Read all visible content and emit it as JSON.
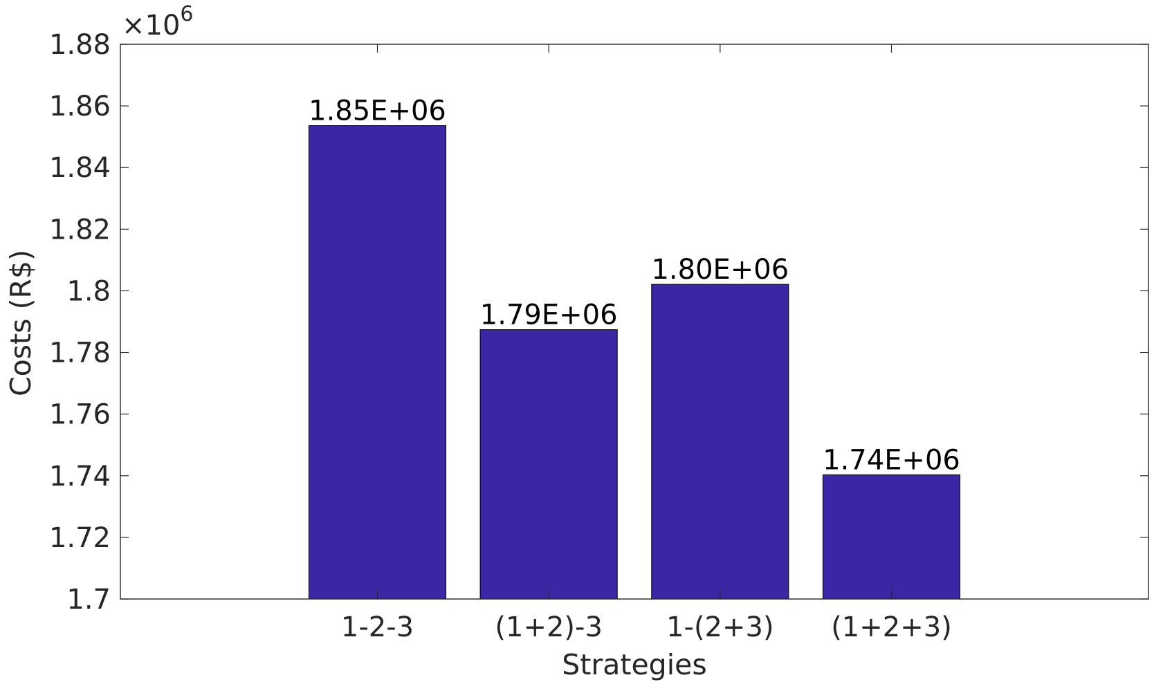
{
  "chart_data": {
    "type": "bar",
    "categories": [
      "1-2-3",
      "(1+2)-3",
      "1-(2+3)",
      "(1+2+3)"
    ],
    "values": [
      1853600,
      1787400,
      1802100,
      1740300
    ],
    "data_labels": [
      "1.85E+06",
      "1.79E+06",
      "1.80E+06",
      "1.74E+06"
    ],
    "title": "",
    "xlabel": "Strategies",
    "ylabel": "Costs (R$)",
    "ylim": [
      1700000,
      1880000
    ],
    "y_ticks": [
      1700000,
      1720000,
      1740000,
      1760000,
      1780000,
      1800000,
      1820000,
      1840000,
      1860000,
      1880000
    ],
    "y_tick_labels": [
      "1.7",
      "1.72",
      "1.74",
      "1.76",
      "1.78",
      "1.8",
      "1.82",
      "1.84",
      "1.86",
      "1.88"
    ],
    "y_exponent_prefix": "×10",
    "y_exponent_power": "6",
    "grid": false,
    "legend": "none",
    "bar_color": "#3c26a4",
    "axis_color": "#262626"
  }
}
